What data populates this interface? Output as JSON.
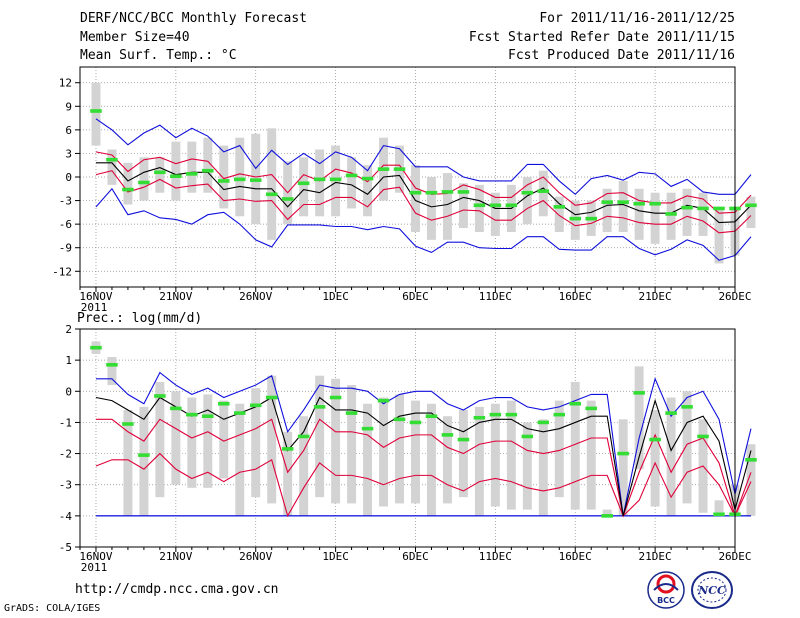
{
  "header": {
    "title": "DERF/NCC/BCC Monthly Forecast",
    "member_size": "Member Size=40",
    "variable_top": "Mean Surf. Temp.: °C",
    "period": "For 2011/11/16-2011/12/25",
    "fcst_started": "Fcst Started Refer Date 2011/11/15",
    "fcst_produced": "Fcst Produced Date 2011/11/16"
  },
  "footer": {
    "url": "http://cmdp.ncc.cma.gov.cn",
    "grads": "GrADS: COLA/IGES",
    "logo_left_text": "BCC",
    "logo_right_text": "NCC"
  },
  "colors": {
    "box": "#d3d3d3",
    "median": "#33dd33",
    "mean": "#000000",
    "inner": "#e0003a",
    "outer": "#1010dd",
    "grid": "#8e8e8e"
  },
  "chart_data": [
    {
      "type": "box-ensemble",
      "title": "Mean Surf. Temp.: °C",
      "ylim": [
        -14,
        14
      ],
      "yticks": [
        -12,
        -9,
        -6,
        -3,
        0,
        3,
        6,
        9,
        12
      ],
      "xticks": [
        {
          "day": 1,
          "label": "16NOV",
          "sub": "2011"
        },
        {
          "day": 6,
          "label": "21NOV"
        },
        {
          "day": 11,
          "label": "26NOV"
        },
        {
          "day": 16,
          "label": "1DEC"
        },
        {
          "day": 21,
          "label": "6DEC"
        },
        {
          "day": 26,
          "label": "11DEC"
        },
        {
          "day": 31,
          "label": "16DEC"
        },
        {
          "day": 36,
          "label": "21DEC"
        },
        {
          "day": 41,
          "label": "26DEC"
        }
      ],
      "series": [
        {
          "name": "mean",
          "role": "mean",
          "values": [
            1.8,
            1.8,
            -0.5,
            0.6,
            1.2,
            0.3,
            0.6,
            0.6,
            -1.6,
            -1.2,
            -1.5,
            -1.5,
            -3.8,
            -1.6,
            -2.0,
            -0.7,
            -1.0,
            -2.2,
            0.0,
            0.2,
            -3.0,
            -3.8,
            -3.5,
            -2.6,
            -3.0,
            -4.0,
            -4.0,
            -2.4,
            -1.4,
            -3.4,
            -4.8,
            -4.5,
            -3.6,
            -3.5,
            -4.3,
            -4.6,
            -4.6,
            -3.6,
            -4.0,
            -5.8,
            -5.7,
            -3.6
          ]
        },
        {
          "name": "upper-inner",
          "role": "inner",
          "values": [
            3.2,
            2.8,
            0.7,
            2.2,
            2.5,
            1.7,
            2.3,
            2.0,
            -0.2,
            0.4,
            0.0,
            0.3,
            -2.0,
            0.3,
            -0.5,
            1.0,
            0.5,
            -0.6,
            1.5,
            1.5,
            -1.4,
            -2.2,
            -2.1,
            -1.0,
            -1.6,
            -2.6,
            -2.6,
            -1.0,
            0.0,
            -2.0,
            -3.6,
            -3.3,
            -2.1,
            -2.0,
            -3.0,
            -3.3,
            -3.3,
            -2.4,
            -2.8,
            -4.6,
            -4.5,
            -2.3
          ]
        },
        {
          "name": "lower-inner",
          "role": "inner",
          "values": [
            0.3,
            0.8,
            -1.9,
            -1.3,
            -0.3,
            -1.4,
            -1.1,
            -0.9,
            -3.0,
            -2.8,
            -3.1,
            -3.0,
            -5.4,
            -3.5,
            -3.5,
            -2.6,
            -2.6,
            -3.8,
            -1.6,
            -1.3,
            -4.6,
            -5.5,
            -5.0,
            -4.2,
            -4.3,
            -5.5,
            -5.5,
            -4.0,
            -3.0,
            -4.9,
            -6.2,
            -5.9,
            -5.0,
            -5.2,
            -5.8,
            -6.0,
            -6.0,
            -5.0,
            -5.6,
            -7.1,
            -6.9,
            -4.9
          ]
        },
        {
          "name": "upper-outer",
          "role": "outer",
          "values": [
            7.4,
            6.0,
            4.1,
            5.6,
            6.6,
            5.0,
            6.2,
            5.2,
            3.2,
            4.0,
            1.1,
            3.4,
            1.6,
            3.0,
            1.7,
            3.2,
            2.5,
            0.8,
            4.0,
            3.6,
            1.3,
            1.3,
            1.3,
            0.0,
            -0.5,
            -0.5,
            -0.5,
            1.6,
            1.6,
            -0.5,
            -2.2,
            -0.2,
            0.2,
            -0.4,
            0.6,
            0.4,
            -1.2,
            -0.3,
            -1.9,
            -2.2,
            -2.2,
            0.3
          ]
        },
        {
          "name": "lower-outer",
          "role": "outer",
          "values": [
            -3.8,
            -1.5,
            -4.8,
            -4.3,
            -5.2,
            -5.4,
            -6.0,
            -4.8,
            -4.5,
            -6.0,
            -8.0,
            -8.9,
            -6.1,
            -6.1,
            -6.1,
            -6.3,
            -6.3,
            -6.7,
            -6.3,
            -6.6,
            -8.8,
            -9.6,
            -8.3,
            -8.3,
            -9.0,
            -9.1,
            -9.1,
            -7.6,
            -7.6,
            -9.2,
            -9.3,
            -9.3,
            -7.6,
            -7.6,
            -9.1,
            -9.9,
            -9.2,
            -8.0,
            -8.7,
            -10.6,
            -10.0,
            -7.6
          ]
        },
        {
          "name": "ensemble-median",
          "role": "median",
          "values": [
            8.4,
            2.2,
            -1.6,
            -0.7,
            0.6,
            0.1,
            0.4,
            0.8,
            -0.5,
            -0.3,
            -0.4,
            -2.2,
            -2.8,
            -0.8,
            -0.3,
            -0.3,
            0.2,
            -0.2,
            1.0,
            1.0,
            -2.0,
            -2.0,
            -1.9,
            -1.9,
            -3.6,
            -3.6,
            -3.6,
            -2.0,
            -1.8,
            -3.8,
            -5.3,
            -5.3,
            -3.2,
            -3.2,
            -3.4,
            -3.4,
            -4.7,
            -3.9,
            -4.0,
            -4.0,
            -4.0,
            -3.6
          ]
        },
        {
          "name": "box-top",
          "role": "box-high",
          "values": [
            12.0,
            3.5,
            1.8,
            2.5,
            2.5,
            4.5,
            4.5,
            5.0,
            4.0,
            5.0,
            5.5,
            6.2,
            2.0,
            2.5,
            3.5,
            4.0,
            2.5,
            1.5,
            5.0,
            4.0,
            1.5,
            0.0,
            0.5,
            -0.8,
            -1.0,
            -2.0,
            -1.0,
            0.0,
            0.8,
            -2.5,
            -3.0,
            -3.0,
            -1.5,
            -0.5,
            -1.5,
            -2.0,
            -2.0,
            -1.5,
            -2.0,
            -4.0,
            -4.0,
            -2.5
          ]
        },
        {
          "name": "box-bottom",
          "role": "box-low",
          "values": [
            4.0,
            -1.0,
            -3.5,
            -3.0,
            -2.0,
            -3.0,
            -2.0,
            -2.0,
            -4.0,
            -5.0,
            -6.0,
            -8.0,
            -6.0,
            -5.0,
            -5.0,
            -5.0,
            -4.0,
            -5.0,
            -3.0,
            -2.0,
            -7.0,
            -8.0,
            -8.0,
            -6.5,
            -7.0,
            -7.5,
            -7.0,
            -6.0,
            -5.0,
            -7.0,
            -8.0,
            -7.5,
            -7.0,
            -7.0,
            -8.0,
            -8.5,
            -8.0,
            -7.5,
            -7.5,
            -11.0,
            -10.0,
            -6.5
          ]
        }
      ]
    },
    {
      "type": "box-ensemble",
      "title": "Prec.: log(mm/d)",
      "ylim": [
        -5,
        2
      ],
      "yticks": [
        -5,
        -4,
        -3,
        -2,
        -1,
        0,
        1,
        2
      ],
      "xticks": [
        {
          "day": 1,
          "label": "16NOV",
          "sub": "2011"
        },
        {
          "day": 6,
          "label": "21NOV"
        },
        {
          "day": 11,
          "label": "26NOV"
        },
        {
          "day": 16,
          "label": "1DEC"
        },
        {
          "day": 21,
          "label": "6DEC"
        },
        {
          "day": 26,
          "label": "11DEC"
        },
        {
          "day": 31,
          "label": "16DEC"
        },
        {
          "day": 36,
          "label": "21DEC"
        },
        {
          "day": 41,
          "label": "26DEC"
        }
      ],
      "baseline": -4,
      "series": [
        {
          "name": "mean",
          "role": "mean",
          "values": [
            -0.2,
            -0.3,
            -0.6,
            -0.9,
            -0.2,
            -0.5,
            -0.8,
            -0.6,
            -0.9,
            -0.7,
            -0.5,
            -0.2,
            -1.9,
            -1.3,
            -0.2,
            -0.6,
            -0.6,
            -0.7,
            -1.1,
            -0.8,
            -0.7,
            -0.7,
            -1.1,
            -1.3,
            -1.0,
            -0.9,
            -0.9,
            -1.2,
            -1.3,
            -1.2,
            -1.0,
            -0.8,
            -0.8,
            -4.0,
            -2.1,
            -0.3,
            -1.9,
            -1.0,
            -0.8,
            -1.6,
            -3.8,
            -1.9
          ]
        },
        {
          "name": "upper-inner",
          "role": "inner",
          "values": [
            -0.9,
            -0.9,
            -1.3,
            -1.6,
            -0.9,
            -1.2,
            -1.5,
            -1.3,
            -1.6,
            -1.4,
            -1.2,
            -0.9,
            -2.6,
            -1.9,
            -0.9,
            -1.3,
            -1.3,
            -1.4,
            -1.8,
            -1.5,
            -1.4,
            -1.4,
            -1.8,
            -2.0,
            -1.7,
            -1.6,
            -1.6,
            -1.9,
            -2.0,
            -1.9,
            -1.7,
            -1.5,
            -1.5,
            -4.0,
            -2.6,
            -1.4,
            -2.6,
            -1.7,
            -1.5,
            -2.3,
            -4.0,
            -2.6
          ]
        },
        {
          "name": "lower-inner",
          "role": "inner",
          "values": [
            -2.4,
            -2.2,
            -2.2,
            -2.5,
            -2.0,
            -2.5,
            -2.8,
            -2.6,
            -2.9,
            -2.6,
            -2.5,
            -2.2,
            -4.0,
            -3.1,
            -2.3,
            -2.7,
            -2.7,
            -2.8,
            -3.0,
            -2.8,
            -2.7,
            -2.7,
            -3.0,
            -3.2,
            -2.9,
            -2.8,
            -2.9,
            -3.1,
            -3.2,
            -3.1,
            -2.9,
            -2.7,
            -2.7,
            -4.0,
            -3.5,
            -2.3,
            -3.4,
            -2.6,
            -2.4,
            -3.0,
            -4.0,
            -2.9
          ]
        },
        {
          "name": "upper-outer",
          "role": "outer",
          "values": [
            0.4,
            0.4,
            -0.1,
            -0.4,
            0.6,
            0.2,
            -0.1,
            0.1,
            -0.2,
            0.0,
            0.2,
            0.5,
            -1.3,
            -0.6,
            0.2,
            0.1,
            0.1,
            0.0,
            -0.4,
            -0.1,
            0.0,
            0.0,
            -0.4,
            -0.6,
            -0.3,
            -0.2,
            -0.2,
            -0.5,
            -0.6,
            -0.5,
            -0.3,
            -0.1,
            -0.1,
            -4.0,
            -1.5,
            0.4,
            -0.8,
            -0.2,
            0.0,
            -0.9,
            -3.3,
            -1.2
          ]
        },
        {
          "name": "lower-outer",
          "role": "outer",
          "values": [
            -4.0,
            -4.0,
            -4.0,
            -4.0,
            -4.0,
            -4.0,
            -4.0,
            -4.0,
            -4.0,
            -4.0,
            -4.0,
            -4.0,
            -4.0,
            -4.0,
            -4.0,
            -4.0,
            -4.0,
            -4.0,
            -4.0,
            -4.0,
            -4.0,
            -4.0,
            -4.0,
            -4.0,
            -4.0,
            -4.0,
            -4.0,
            -4.0,
            -4.0,
            -4.0,
            -4.0,
            -4.0,
            -4.0,
            -4.0,
            -4.0,
            -4.0,
            -4.0,
            -4.0,
            -4.0,
            -4.0,
            -4.0,
            -4.0
          ]
        },
        {
          "name": "ensemble-median",
          "role": "median",
          "values": [
            1.4,
            0.85,
            -1.05,
            -2.05,
            -0.15,
            -0.55,
            -0.75,
            -0.8,
            -0.4,
            -0.7,
            -0.45,
            -0.2,
            -1.85,
            -1.45,
            -0.5,
            -0.2,
            -0.7,
            -1.2,
            -0.3,
            -0.9,
            -1.0,
            -0.8,
            -1.4,
            -1.55,
            -0.85,
            -0.75,
            -0.75,
            -1.45,
            -1.0,
            -0.75,
            -0.4,
            -0.55,
            -4.0,
            -2.0,
            -0.05,
            -1.55,
            -0.7,
            -0.5,
            -1.45,
            -3.95,
            -3.95,
            -2.2
          ]
        },
        {
          "name": "box-top",
          "role": "box-high",
          "values": [
            1.6,
            1.1,
            -0.6,
            -0.5,
            0.3,
            0.0,
            -0.2,
            -0.1,
            -0.3,
            -0.4,
            0.1,
            0.5,
            -1.3,
            -0.8,
            0.5,
            0.4,
            0.2,
            -0.4,
            -0.2,
            -0.1,
            -0.3,
            -0.4,
            -0.8,
            -0.6,
            -0.5,
            -0.4,
            -0.3,
            -1.0,
            -0.9,
            -0.3,
            0.3,
            -0.3,
            -3.8,
            -0.9,
            0.8,
            -0.6,
            -0.2,
            0.0,
            -0.9,
            -3.5,
            -3.0,
            -1.7
          ]
        },
        {
          "name": "box-bottom",
          "role": "box-low",
          "values": [
            1.2,
            0.2,
            -4.0,
            -4.0,
            -3.4,
            -3.0,
            -3.1,
            -3.1,
            -2.8,
            -4.0,
            -3.4,
            -3.6,
            -4.0,
            -4.0,
            -3.4,
            -3.6,
            -3.6,
            -4.0,
            -3.7,
            -3.6,
            -3.6,
            -4.0,
            -3.6,
            -3.4,
            -4.0,
            -3.7,
            -3.8,
            -3.8,
            -4.0,
            -3.4,
            -3.8,
            -3.8,
            -4.0,
            -4.0,
            -2.5,
            -3.7,
            -4.0,
            -3.6,
            -3.9,
            -4.0,
            -4.0,
            -4.0
          ]
        }
      ]
    }
  ]
}
